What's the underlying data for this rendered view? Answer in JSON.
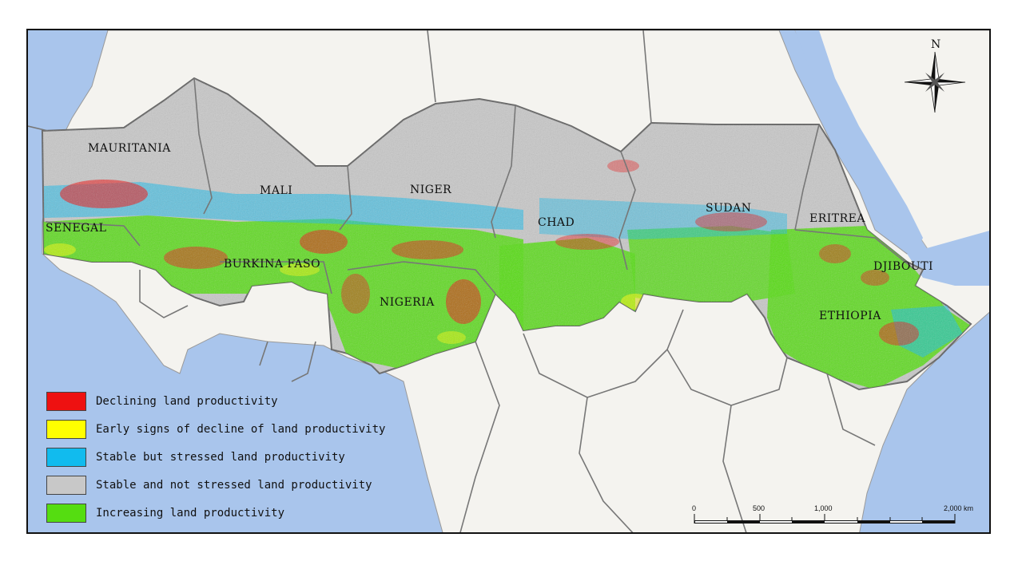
{
  "countries": [
    {
      "name": "MAURITANIA"
    },
    {
      "name": "MALI"
    },
    {
      "name": "NIGER"
    },
    {
      "name": "CHAD"
    },
    {
      "name": "SUDAN"
    },
    {
      "name": "ERITREA"
    },
    {
      "name": "SENEGAL"
    },
    {
      "name": "BURKINA FASO"
    },
    {
      "name": "NIGERIA"
    },
    {
      "name": "DJIBOUTI"
    },
    {
      "name": "ETHIOPIA"
    }
  ],
  "legend": [
    {
      "label": "Declining land productivity",
      "color": "#ee1111"
    },
    {
      "label": "Early signs of decline of land productivity",
      "color": "#ffff00"
    },
    {
      "label": "Stable but stressed land productivity",
      "color": "#11bbee"
    },
    {
      "label": "Stable and not stressed land productivity",
      "color": "#c8c8c8"
    },
    {
      "label": "Increasing land productivity",
      "color": "#55dd11"
    }
  ],
  "scale_bar": {
    "ticks": [
      "0",
      "500",
      "1,000",
      "2,000 km"
    ]
  },
  "north_arrow": {
    "label": "N"
  },
  "colors": {
    "ocean": "#a9c5ec",
    "land": "#f4f3ef",
    "border": "#777777",
    "sahel_gray": "#c8c8c8",
    "green": "#55dd11",
    "red": "#ee1111",
    "blue": "#11bbee",
    "yellow": "#ffff00"
  }
}
